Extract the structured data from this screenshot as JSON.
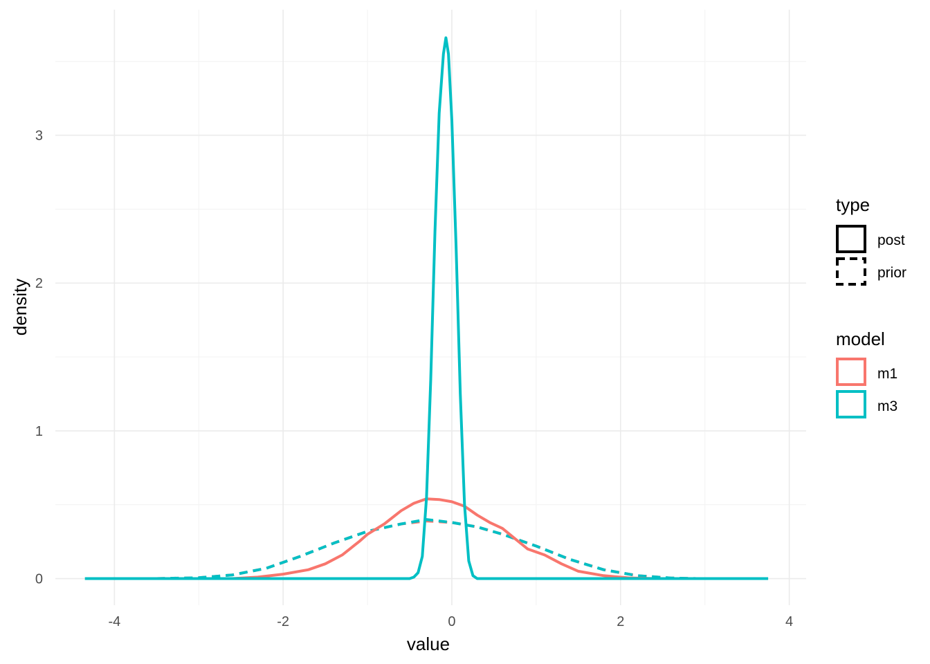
{
  "chart_data": {
    "type": "line",
    "title": "",
    "xlabel": "value",
    "ylabel": "density",
    "xlim": [
      -4.7,
      4.2
    ],
    "ylim": [
      -0.18,
      3.85
    ],
    "x_ticks": [
      -4,
      -2,
      0,
      2,
      4
    ],
    "x_tick_labels": [
      "-4",
      "-2",
      "0",
      "2",
      "4"
    ],
    "y_ticks": [
      0,
      1,
      2,
      3
    ],
    "y_tick_labels": [
      "0",
      "1",
      "2",
      "3"
    ],
    "grid": true,
    "legend_position": "right",
    "legends": [
      {
        "title": "type",
        "items": [
          {
            "label": "post",
            "linetype": "solid"
          },
          {
            "label": "prior",
            "linetype": "dashed"
          }
        ]
      },
      {
        "title": "model",
        "items": [
          {
            "label": "m1",
            "color": "#F8766D"
          },
          {
            "label": "m3",
            "color": "#00BFC4"
          }
        ]
      }
    ],
    "series": [
      {
        "model": "m1",
        "type": "prior",
        "color": "#F8766D",
        "linetype": "dashed",
        "x": [
          -3.5,
          -3.0,
          -2.6,
          -2.2,
          -1.8,
          -1.4,
          -1.0,
          -0.6,
          -0.3,
          0.0,
          0.3,
          0.6,
          1.0,
          1.4,
          1.8,
          2.2,
          2.6,
          2.9
        ],
        "y": [
          0.0,
          0.006,
          0.025,
          0.07,
          0.15,
          0.24,
          0.32,
          0.37,
          0.39,
          0.38,
          0.35,
          0.3,
          0.22,
          0.13,
          0.06,
          0.02,
          0.004,
          0.0
        ]
      },
      {
        "model": "m3",
        "type": "prior",
        "color": "#00BFC4",
        "linetype": "dashed",
        "x": [
          -3.5,
          -3.0,
          -2.6,
          -2.2,
          -1.8,
          -1.4,
          -1.0,
          -0.6,
          -0.3,
          0.0,
          0.3,
          0.6,
          1.0,
          1.4,
          1.8,
          2.2,
          2.6,
          2.9
        ],
        "y": [
          0.0,
          0.006,
          0.025,
          0.07,
          0.15,
          0.24,
          0.32,
          0.37,
          0.4,
          0.38,
          0.35,
          0.3,
          0.22,
          0.13,
          0.06,
          0.02,
          0.004,
          0.0
        ]
      },
      {
        "model": "m1",
        "type": "post",
        "color": "#F8766D",
        "linetype": "solid",
        "x": [
          -2.6,
          -2.3,
          -2.0,
          -1.7,
          -1.5,
          -1.3,
          -1.1,
          -1.0,
          -0.8,
          -0.6,
          -0.45,
          -0.3,
          -0.15,
          0.0,
          0.15,
          0.3,
          0.45,
          0.6,
          0.75,
          0.9,
          1.1,
          1.3,
          1.5,
          1.8,
          2.1,
          2.4
        ],
        "y": [
          0.0,
          0.01,
          0.03,
          0.06,
          0.1,
          0.16,
          0.25,
          0.3,
          0.37,
          0.46,
          0.51,
          0.54,
          0.535,
          0.52,
          0.49,
          0.43,
          0.38,
          0.34,
          0.27,
          0.2,
          0.16,
          0.1,
          0.05,
          0.02,
          0.005,
          0.0
        ]
      },
      {
        "model": "m3",
        "type": "post",
        "color": "#00BFC4",
        "linetype": "solid",
        "x": [
          -4.35,
          -0.5,
          -0.45,
          -0.4,
          -0.35,
          -0.3,
          -0.25,
          -0.2,
          -0.15,
          -0.1,
          -0.07,
          -0.04,
          0.0,
          0.05,
          0.1,
          0.15,
          0.2,
          0.25,
          0.3,
          0.35,
          3.75
        ],
        "y": [
          0.0,
          0.0,
          0.01,
          0.04,
          0.15,
          0.55,
          1.35,
          2.35,
          3.15,
          3.55,
          3.66,
          3.55,
          3.1,
          2.25,
          1.25,
          0.5,
          0.12,
          0.02,
          0.0,
          0.0,
          0.0
        ]
      }
    ]
  }
}
